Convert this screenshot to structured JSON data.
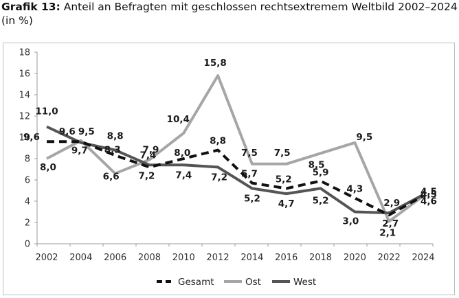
{
  "header": {
    "title_prefix": "Grafik 13:",
    "title_text": " Anteil an Befragten mit geschlossen rechtsextremem Weltbild 2002–2024",
    "subtitle": "(in %)"
  },
  "chart_data": {
    "type": "line",
    "title": "Anteil an Befragten mit geschlossen rechtsextremem Weltbild 2002–2024",
    "subtitle": "(in %)",
    "categories": [
      "2002",
      "2004",
      "2006",
      "2008",
      "2010",
      "2012",
      "2014",
      "2016",
      "2018",
      "2020",
      "2022",
      "2024"
    ],
    "yticks": [
      0,
      2,
      4,
      6,
      8,
      10,
      12,
      14,
      16,
      18
    ],
    "ylim": [
      0,
      18
    ],
    "grid": false,
    "legend_position": "bottom",
    "series": [
      {
        "name": "Gesamt",
        "color": "#111111",
        "style": "dashed",
        "values": [
          9.6,
          9.6,
          8.3,
          7.2,
          8.0,
          8.8,
          5.7,
          5.2,
          5.9,
          4.3,
          2.7,
          4.5
        ],
        "labels": [
          "9,6",
          "9,6",
          "8,3",
          "7,2",
          "8,0",
          "8,8",
          "5,7",
          "5,2",
          "5,9",
          "4,3",
          "2,7",
          "4,5"
        ]
      },
      {
        "name": "Ost",
        "color": "#a6a6a6",
        "style": "solid",
        "values": [
          8.0,
          9.7,
          6.6,
          7.9,
          10.4,
          15.8,
          7.5,
          7.5,
          8.5,
          9.5,
          2.1,
          4.5
        ],
        "labels": [
          "8,0",
          "9,7",
          "6,6",
          "7,9",
          "10,4",
          "15,8",
          "7,5",
          "7,5",
          "8,5",
          "9,5",
          "2,1",
          "4,5"
        ]
      },
      {
        "name": "West",
        "color": "#555555",
        "style": "solid",
        "values": [
          11.0,
          9.5,
          8.8,
          7.4,
          7.4,
          7.2,
          5.2,
          4.7,
          5.2,
          3.0,
          2.9,
          4.6
        ],
        "labels": [
          "11,0",
          "9,5",
          "8,8",
          "7,4",
          "7,4",
          "7,2",
          "5,2",
          "4,7",
          "5,2",
          "3,0",
          "2,9",
          "4,6"
        ]
      }
    ]
  }
}
